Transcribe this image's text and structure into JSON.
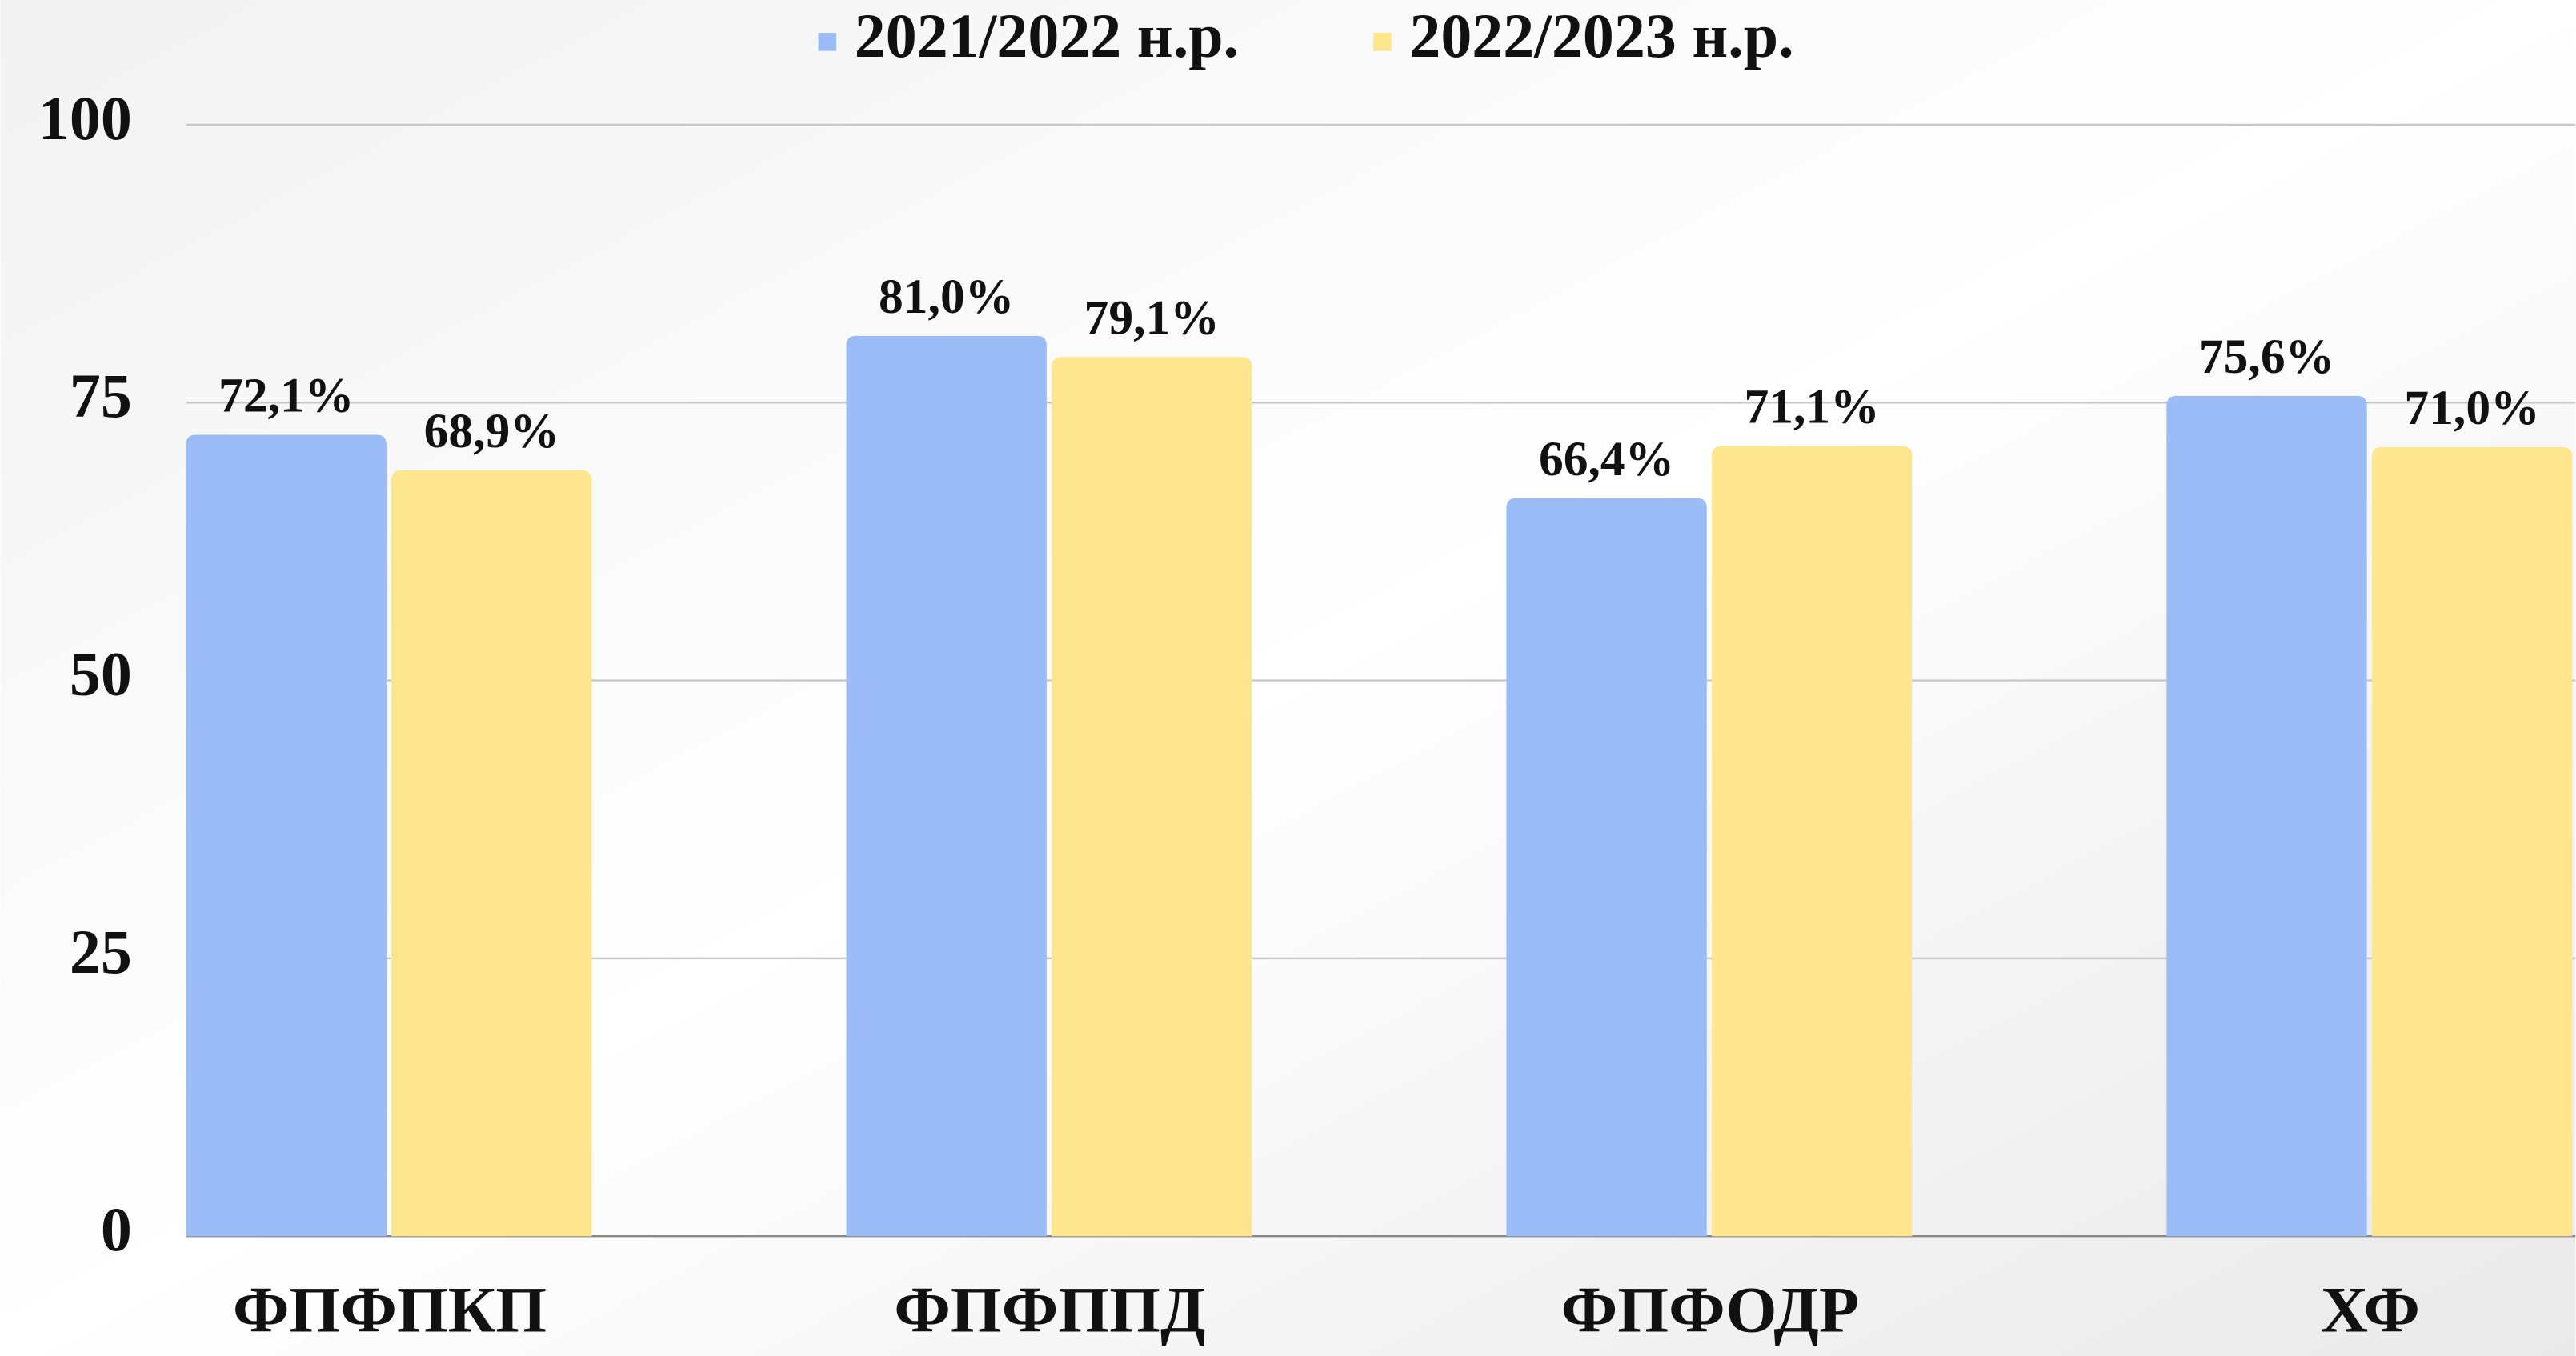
{
  "chart_data": {
    "type": "bar",
    "categories": [
      "ФПФПКП",
      "ФПФППД",
      "ФПФОДР",
      "ХФ"
    ],
    "series": [
      {
        "name": "2021/2022 н.р.",
        "color": "#9bbcf7",
        "values": [
          72.1,
          81.0,
          66.4,
          75.6
        ],
        "value_labels": [
          "72,1%",
          "81,0%",
          "66,4%",
          "75,6%"
        ]
      },
      {
        "name": "2022/2023 н.р.",
        "color": "#fde68d",
        "values": [
          68.9,
          79.1,
          71.1,
          71.0
        ],
        "value_labels": [
          "68,9%",
          "79,1%",
          "71,1%",
          "71,0%"
        ]
      }
    ],
    "ylim": [
      0,
      100
    ],
    "yticks": [
      0,
      25,
      50,
      75,
      100
    ],
    "grid": true,
    "legend": "top"
  }
}
